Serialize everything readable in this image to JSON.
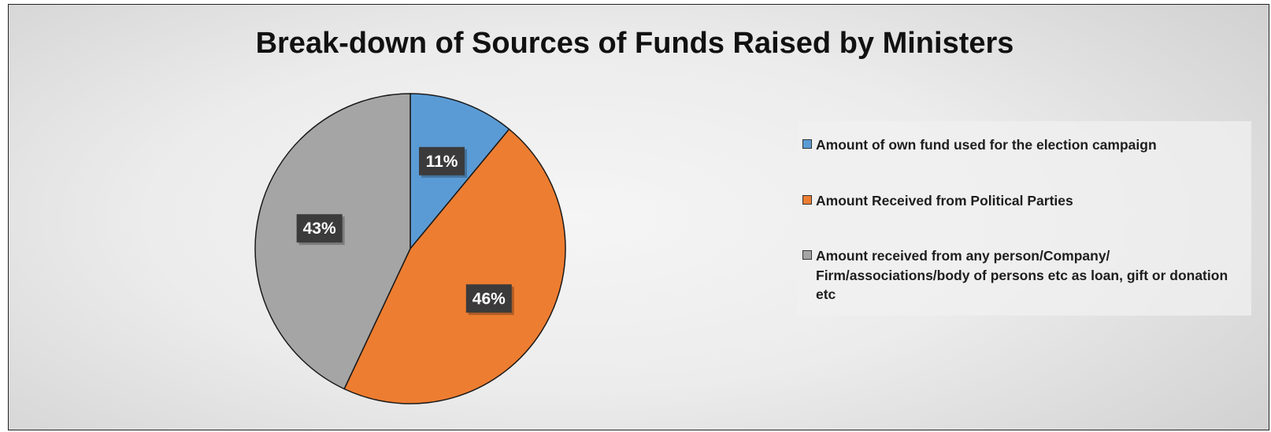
{
  "chart_data": {
    "type": "pie",
    "title": "Break-down of Sources of Funds Raised by Ministers",
    "legend_position": "right",
    "slices": [
      {
        "label": "Amount of own fund used for the election campaign",
        "value": 11,
        "display": "11%",
        "color": "#5b9bd5"
      },
      {
        "label": "Amount Received from Political Parties",
        "value": 46,
        "display": "46%",
        "color": "#ed7d31"
      },
      {
        "label": "Amount received from any person/Company/ Firm/associations/body of persons etc as loan, gift or donation etc",
        "value": 43,
        "display": "43%",
        "color": "#a5a5a5"
      }
    ]
  }
}
